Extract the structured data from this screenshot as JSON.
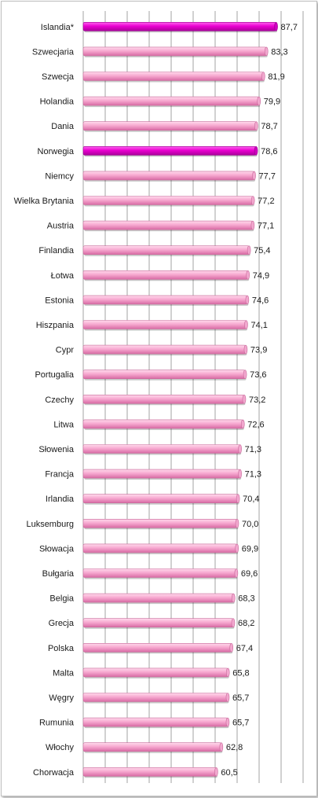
{
  "chart_data": {
    "type": "bar",
    "orientation": "horizontal",
    "title": "",
    "xlabel": "",
    "ylabel": "",
    "categories": [
      "Islandia*",
      "Szwecjaria",
      "Szwecja",
      "Holandia",
      "Dania",
      "Norwegia",
      "Niemcy",
      "Wielka Brytania",
      "Austria",
      "Finlandia",
      "Łotwa",
      "Estonia",
      "Hiszpania",
      "Cypr",
      "Portugalia",
      "Czechy",
      "Litwa",
      "Słowenia",
      "Francja",
      "Irlandia",
      "Luksemburg",
      "Słowacja",
      "Bułgaria",
      "Belgia",
      "Grecja",
      "Polska",
      "Malta",
      "Węgry",
      "Rumunia",
      "Włochy",
      "Chorwacja"
    ],
    "values": [
      87.7,
      83.3,
      81.9,
      79.9,
      78.7,
      78.6,
      77.7,
      77.2,
      77.1,
      75.4,
      74.9,
      74.6,
      74.1,
      73.9,
      73.6,
      73.2,
      72.6,
      71.3,
      71.3,
      70.4,
      70.0,
      69.9,
      69.6,
      68.3,
      68.2,
      67.4,
      65.8,
      65.7,
      65.7,
      62.8,
      60.5
    ],
    "value_labels": [
      "87,7",
      "83,3",
      "81,9",
      "79,9",
      "78,7",
      "78,6",
      "77,7",
      "77,2",
      "77,1",
      "75,4",
      "74,9",
      "74,6",
      "74,1",
      "73,9",
      "73,6",
      "73,2",
      "72,6",
      "71,3",
      "71,3",
      "70,4",
      "70,0",
      "69,9",
      "69,6",
      "68,3",
      "68,2",
      "67,4",
      "65,8",
      "65,7",
      "65,7",
      "62,8",
      "60,5"
    ],
    "highlighted": [
      "Islandia*",
      "Norwegia"
    ],
    "xlim": [
      0,
      100
    ],
    "gridlines": "vertical",
    "legend": "none",
    "colors": {
      "bar": "#f49ac8",
      "bar_highlight": "#e800c8",
      "grid": "#8c8c8c"
    }
  }
}
